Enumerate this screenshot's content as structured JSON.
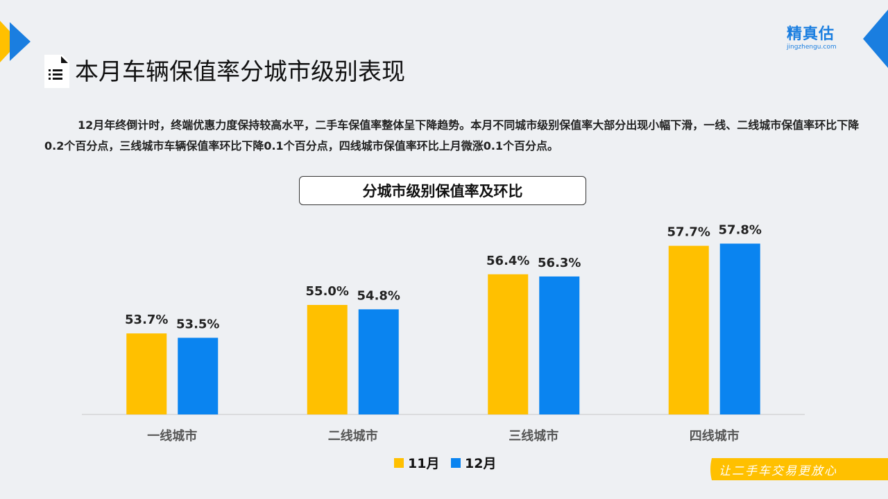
{
  "brand": {
    "name_cn": "精真估",
    "domain": "jingzhengu.com"
  },
  "page_title": "本月车辆保值率分城市级别表现",
  "description": "12月年终倒计时，终端优惠力度保持较高水平，二手车保值率整体呈下降趋势。本月不同城市级别保值率大部分出现小幅下滑，一线、二线城市保值率环比下降0.2个百分点，三线城市车辆保值率环比下降0.1个百分点，四线城市保值率环比上月微涨0.1个百分点。",
  "slogan": "让二手车交易更放心",
  "colors": {
    "accent_yellow": "#ffc000",
    "accent_blue": "#0a84f0",
    "brand_blue": "#1a7ee0"
  },
  "chart_data": {
    "type": "bar",
    "title": "分城市级别保值率及环比",
    "categories": [
      "一线城市",
      "二线城市",
      "三线城市",
      "四线城市"
    ],
    "series": [
      {
        "name": "11月",
        "values": [
          53.7,
          55.0,
          56.4,
          57.7
        ],
        "labels": [
          "53.7%",
          "55.0%",
          "56.4%",
          "57.7%"
        ],
        "color": "#ffc000"
      },
      {
        "name": "12月",
        "values": [
          53.5,
          54.8,
          56.3,
          57.8
        ],
        "labels": [
          "53.5%",
          "54.8%",
          "56.3%",
          "57.8%"
        ],
        "color": "#0a84f0"
      }
    ],
    "unit": "%",
    "legend": "bottom-center",
    "grid": false
  }
}
